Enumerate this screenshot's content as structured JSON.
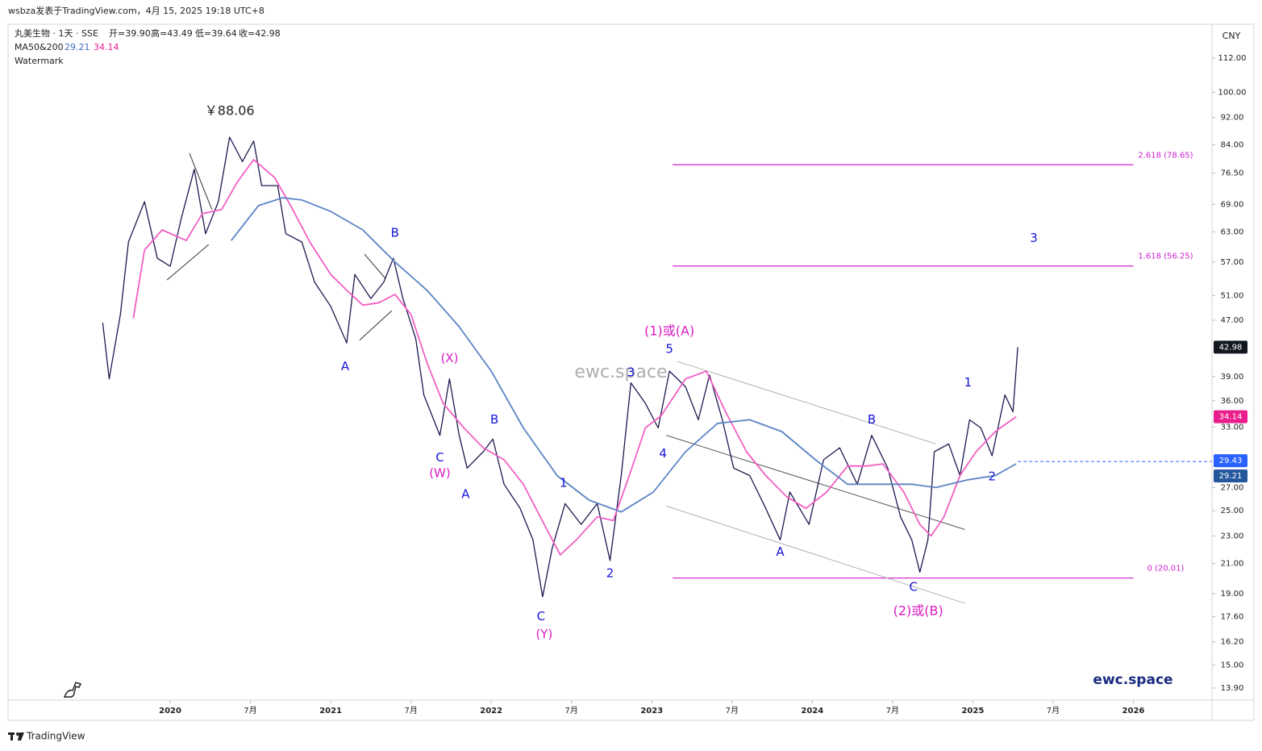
{
  "header": {
    "attribution": "wsbza发表于TradingView.com，4月 15, 2025 19:18 UTC+8",
    "symbol": "丸美生物 · 1天 · SSE",
    "ohlc": [
      "开=39.90",
      "高=43.49",
      "低=39.64",
      "收=42.98"
    ],
    "indicator": "MA50&200",
    "watermark_label": "Watermark"
  },
  "chart_data": {
    "type": "line",
    "log_scale": true,
    "y_axis_unit": "CNY",
    "xlim": [
      2018.99,
      2026.49
    ],
    "xticks": [
      2020,
      {
        "value": 2020.5,
        "label": "7月"
      },
      2021,
      {
        "value": 2021.5,
        "label": "7月"
      },
      2022,
      {
        "value": 2022.5,
        "label": "7月"
      },
      2023,
      {
        "value": 2023.5,
        "label": "7月"
      },
      2024,
      {
        "value": 2024.5,
        "label": "7月"
      },
      2025,
      {
        "value": 2025.5,
        "label": "7月"
      },
      2026
    ],
    "ylim": [
      13.35,
      125.3
    ],
    "yticks": [
      {
        "value": 112,
        "label": "112.00"
      },
      {
        "value": 100,
        "label": "100.00"
      },
      {
        "value": 92,
        "label": "92.00"
      },
      {
        "value": 84,
        "label": "84.00"
      },
      {
        "value": 76.5,
        "label": "76.50"
      },
      {
        "value": 69,
        "label": "69.00"
      },
      {
        "value": 63,
        "label": "63.00"
      },
      {
        "value": 57,
        "label": "57.00"
      },
      {
        "value": 51,
        "label": "51.00"
      },
      {
        "value": 47,
        "label": "47.00"
      },
      {
        "value": 39,
        "label": "39.00"
      },
      {
        "value": 36,
        "label": "36.00"
      },
      {
        "value": 33,
        "label": "33.00"
      },
      {
        "value": 27,
        "label": "27.00"
      },
      {
        "value": 25,
        "label": "25.00"
      },
      {
        "value": 23,
        "label": "23.00"
      },
      {
        "value": 21,
        "label": "21.00"
      },
      {
        "value": 19,
        "label": "19.00"
      },
      {
        "value": 17.6,
        "label": "17.60"
      },
      {
        "value": 16.2,
        "label": "16.20"
      },
      {
        "value": 15,
        "label": "15.00"
      },
      {
        "value": 13.9,
        "label": "13.90"
      }
    ],
    "series": [
      {
        "color": "#1b1a4f",
        "x": [
          2019.58,
          2019.62,
          2019.69,
          2019.74,
          2019.84,
          2019.92,
          2020.0,
          2020.07,
          2020.15,
          2020.22,
          2020.3,
          2020.37,
          2020.45,
          2020.52,
          2020.57,
          2020.67,
          2020.72,
          2020.82,
          2020.9,
          2021.0,
          2021.1,
          2021.15,
          2021.25,
          2021.33,
          2021.39,
          2021.45,
          2021.53,
          2021.58,
          2021.68,
          2021.74,
          2021.8,
          2021.85,
          2021.95,
          2022.01,
          2022.08,
          2022.18,
          2022.26,
          2022.32,
          2022.38,
          2022.46,
          2022.56,
          2022.66,
          2022.74,
          2022.81,
          2022.87,
          2022.96,
          2023.04,
          2023.11,
          2023.21,
          2023.29,
          2023.36,
          2023.44,
          2023.51,
          2023.61,
          2023.71,
          2023.8,
          2023.86,
          2023.98,
          2024.07,
          2024.17,
          2024.28,
          2024.37,
          2024.47,
          2024.55,
          2024.62,
          2024.67,
          2024.72,
          2024.76,
          2024.85,
          2024.92,
          2024.98,
          2025.05,
          2025.12,
          2025.2,
          2025.25,
          2025.28
        ],
        "values": [
          46.6,
          38.7,
          47.9,
          60.9,
          69.6,
          57.7,
          56.2,
          66.0,
          77.5,
          62.6,
          69.6,
          86.2,
          79.5,
          85.1,
          73.4,
          73.4,
          62.6,
          60.9,
          53.3,
          49.2,
          43.6,
          54.7,
          50.5,
          53.3,
          57.7,
          50.5,
          44.2,
          36.7,
          32.1,
          38.7,
          32.1,
          28.8,
          30.4,
          31.7,
          27.3,
          25.2,
          22.7,
          18.8,
          22.1,
          25.6,
          23.9,
          25.6,
          21.2,
          28.1,
          38.2,
          35.7,
          32.9,
          39.7,
          37.7,
          33.8,
          39.2,
          33.8,
          28.8,
          28.1,
          25.2,
          22.7,
          26.6,
          23.9,
          29.6,
          30.8,
          27.3,
          32.1,
          28.8,
          24.5,
          22.7,
          20.4,
          22.7,
          30.4,
          31.2,
          28.1,
          33.8,
          32.9,
          30.0,
          36.7,
          34.7,
          42.98
        ]
      },
      {
        "color": "#f25fc4",
        "x": [
          2019.77,
          2019.84,
          2019.95,
          2020.1,
          2020.2,
          2020.32,
          2020.42,
          2020.52,
          2020.65,
          2020.75,
          2020.87,
          2021.0,
          2021.1,
          2021.2,
          2021.3,
          2021.4,
          2021.5,
          2021.6,
          2021.7,
          2021.83,
          2021.95,
          2022.08,
          2022.2,
          2022.33,
          2022.43,
          2022.53,
          2022.66,
          2022.76,
          2022.86,
          2022.96,
          2023.06,
          2023.21,
          2023.34,
          2023.46,
          2023.59,
          2023.71,
          2023.84,
          2023.96,
          2024.09,
          2024.22,
          2024.34,
          2024.44,
          2024.57,
          2024.67,
          2024.74,
          2024.82,
          2024.92,
          2025.02,
          2025.14,
          2025.27
        ],
        "values": [
          47.3,
          59.3,
          63.4,
          61.2,
          66.9,
          67.8,
          74.4,
          80.0,
          75.4,
          68.7,
          60.9,
          54.7,
          51.9,
          49.4,
          49.8,
          51.2,
          47.9,
          40.8,
          35.7,
          32.9,
          30.8,
          29.6,
          27.3,
          23.9,
          21.6,
          22.7,
          24.5,
          24.2,
          28.1,
          32.9,
          34.3,
          38.7,
          39.7,
          34.7,
          30.4,
          28.1,
          26.2,
          25.2,
          26.6,
          29.0,
          29.0,
          29.2,
          26.6,
          23.9,
          23.0,
          24.5,
          28.1,
          30.4,
          32.5,
          34.14
        ]
      },
      {
        "color": "#5b84c4",
        "x": [
          2020.38,
          2020.55,
          2020.7,
          2020.82,
          2021.0,
          2021.2,
          2021.4,
          2021.6,
          2021.8,
          2022.0,
          2022.2,
          2022.41,
          2022.61,
          2022.81,
          2023.01,
          2023.21,
          2023.41,
          2023.61,
          2023.81,
          2024.02,
          2024.22,
          2024.42,
          2024.62,
          2024.77,
          2024.97,
          2025.14,
          2025.27
        ],
        "values": [
          61.2,
          68.7,
          70.5,
          70.0,
          67.4,
          63.4,
          57.0,
          51.9,
          46.0,
          39.7,
          32.9,
          28.1,
          25.9,
          24.9,
          26.6,
          30.4,
          33.4,
          33.8,
          32.5,
          29.6,
          27.3,
          27.3,
          27.3,
          27.0,
          27.7,
          28.1,
          29.21
        ]
      }
    ],
    "hlines": [
      {
        "value": 78.65,
        "label": "2.618 (78.65)",
        "x": [
          2023.13,
          2026.0
        ]
      },
      {
        "value": 56.25,
        "label": "1.618 (56.25)",
        "x": [
          2023.13,
          2026.0
        ]
      },
      {
        "value": 20.01,
        "label": "0 (20.01)",
        "x": [
          2023.13,
          2026.0
        ]
      }
    ],
    "price_line": {
      "value": 29.43,
      "label": "29.43",
      "x_start": 2025.28
    },
    "trendlines": [
      {
        "color": "#b0b0b0",
        "x": [
          2023.16,
          2024.77
        ],
        "y": [
          41.0,
          31.2
        ]
      },
      {
        "color": "#555555",
        "x": [
          2023.09,
          2024.95
        ],
        "y": [
          32.1,
          23.5
        ]
      },
      {
        "color": "#b0b0b0",
        "x": [
          2023.09,
          2024.95
        ],
        "y": [
          25.4,
          18.4
        ]
      },
      {
        "color": "#333333",
        "x": [
          2020.12,
          2020.26
        ],
        "y": [
          81.7,
          67.8
        ]
      },
      {
        "color": "#333333",
        "x": [
          2019.98,
          2020.24
        ],
        "y": [
          53.7,
          60.4
        ]
      },
      {
        "color": "#333333",
        "x": [
          2021.21,
          2021.34
        ],
        "y": [
          58.5,
          54.0
        ]
      },
      {
        "color": "#333333",
        "x": [
          2021.18,
          2021.38
        ],
        "y": [
          44.0,
          48.5
        ]
      }
    ],
    "annotations": [
      {
        "text": "￥88.06",
        "x": 2020.37,
        "y": 93.9,
        "color": "#222222"
      },
      {
        "text": "B",
        "x": 2021.4,
        "y": 62.7,
        "color": "#1414d8"
      },
      {
        "text": "A",
        "x": 2021.09,
        "y": 40.3,
        "color": "#1414d8"
      },
      {
        "text": "(X)",
        "x": 2021.74,
        "y": 41.4,
        "color": "#d81bc4"
      },
      {
        "text": "C",
        "x": 2021.68,
        "y": 29.8,
        "color": "#1414d8"
      },
      {
        "text": "(W)",
        "x": 2021.68,
        "y": 28.3,
        "color": "#d81bc4"
      },
      {
        "text": "B",
        "x": 2022.02,
        "y": 33.8,
        "color": "#1414d8"
      },
      {
        "text": "A",
        "x": 2021.84,
        "y": 26.4,
        "color": "#1414d8"
      },
      {
        "text": "1",
        "x": 2022.45,
        "y": 27.4,
        "color": "#1414d8"
      },
      {
        "text": "2",
        "x": 2022.74,
        "y": 20.3,
        "color": "#1414d8"
      },
      {
        "text": "C",
        "x": 2022.31,
        "y": 17.6,
        "color": "#1414d8"
      },
      {
        "text": "(Y)",
        "x": 2022.33,
        "y": 16.6,
        "color": "#d81bc4"
      },
      {
        "text": "3",
        "x": 2022.87,
        "y": 39.5,
        "color": "#1414d8"
      },
      {
        "text": "5",
        "x": 2023.11,
        "y": 42.7,
        "color": "#1414d8"
      },
      {
        "text": "(1)或(A)",
        "x": 2023.11,
        "y": 45.3,
        "color": "#d81bc4"
      },
      {
        "text": "4",
        "x": 2023.07,
        "y": 30.2,
        "color": "#1414d8"
      },
      {
        "text": "A",
        "x": 2023.8,
        "y": 21.8,
        "color": "#1414d8"
      },
      {
        "text": "B",
        "x": 2024.37,
        "y": 33.8,
        "color": "#1414d8"
      },
      {
        "text": "C",
        "x": 2024.63,
        "y": 19.4,
        "color": "#1414d8"
      },
      {
        "text": "(2)或(B)",
        "x": 2024.66,
        "y": 17.9,
        "color": "#d81bc4"
      },
      {
        "text": "1",
        "x": 2024.97,
        "y": 38.2,
        "color": "#1414d8"
      },
      {
        "text": "2",
        "x": 2025.12,
        "y": 28.0,
        "color": "#1414d8"
      },
      {
        "text": "3",
        "x": 2025.38,
        "y": 61.6,
        "color": "#1414d8"
      }
    ],
    "watermarks": [
      "ewc.space",
      "ewc.space"
    ]
  },
  "footer": {
    "brand": "TradingView"
  }
}
